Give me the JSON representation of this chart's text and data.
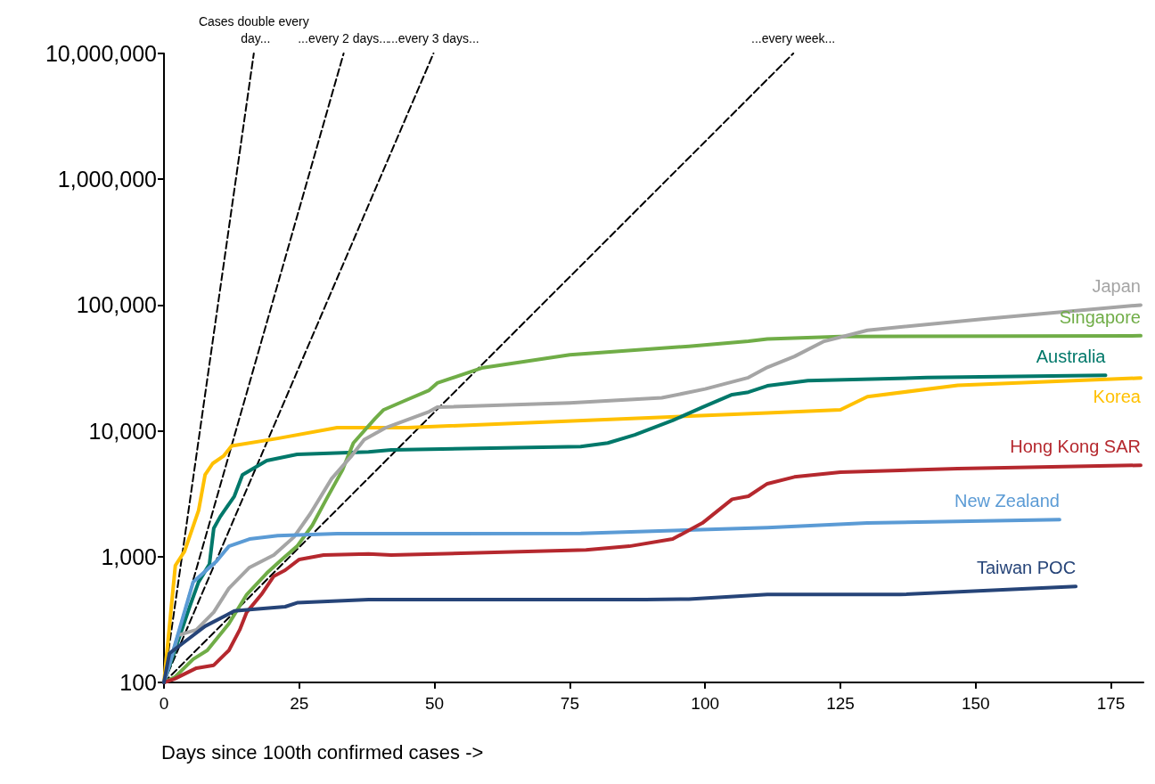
{
  "chart_data": {
    "type": "line",
    "xlabel": "Days since 100th confirmed cases ->",
    "log": "y",
    "grid": false,
    "legend": false,
    "marker": "none",
    "xlim": [
      0,
      181
    ],
    "xticks": [
      0,
      25,
      50,
      75,
      100,
      125,
      150,
      175
    ],
    "ylim": [
      100,
      10000000
    ],
    "yticks": [
      {
        "value": 100,
        "label": "100"
      },
      {
        "value": 1000,
        "label": "1,000"
      },
      {
        "value": 10000,
        "label": "10,000"
      },
      {
        "value": 100000,
        "label": "100,000"
      },
      {
        "value": 1000000,
        "label": "1,000,000"
      },
      {
        "value": 10000000,
        "label": "10,000,000"
      }
    ],
    "series": [
      {
        "name": "Cases double every day...",
        "color": "#000000",
        "line_style": "dashed",
        "x": [
          0,
          16.6
        ],
        "values": [
          100,
          10000000
        ]
      },
      {
        "name": "...every 2 days...",
        "color": "#000000",
        "line_style": "dashed",
        "x": [
          0,
          33.2
        ],
        "values": [
          100,
          10000000
        ]
      },
      {
        "name": "...every 3 days...",
        "color": "#000000",
        "line_style": "dashed",
        "x": [
          0,
          49.8
        ],
        "values": [
          100,
          10000000
        ]
      },
      {
        "name": "...every week...",
        "color": "#000000",
        "line_style": "dashed",
        "x": [
          0,
          116.3
        ],
        "values": [
          100,
          10000000
        ]
      },
      {
        "name": "Korea",
        "color": "#ffc000",
        "line_style": "solid",
        "x": [
          0,
          2.1,
          3.8,
          6.4,
          7.6,
          9,
          11,
          12.5,
          21,
          32,
          45,
          111.5,
          125,
          130,
          146.7,
          180.5
        ],
        "values": [
          100,
          850,
          1100,
          2330,
          4470,
          5500,
          6300,
          7600,
          8700,
          10600,
          10600,
          13900,
          14700,
          18700,
          23000,
          26300
        ]
      },
      {
        "name": "Australia",
        "color": "#00786a",
        "line_style": "solid",
        "x": [
          0,
          4.8,
          6.4,
          8.4,
          9.2,
          10.4,
          13,
          14.5,
          19,
          24.6,
          37.8,
          42,
          77,
          82,
          87,
          94,
          99.5,
          105,
          108,
          111.5,
          119,
          141,
          174
        ],
        "values": [
          100,
          405,
          630,
          870,
          1680,
          2080,
          3020,
          4470,
          5800,
          6500,
          6800,
          7060,
          7500,
          8000,
          9300,
          12100,
          15400,
          19400,
          20300,
          22800,
          25100,
          26500,
          27600
        ]
      },
      {
        "name": "Singapore",
        "color": "#70ad47",
        "line_style": "solid",
        "x": [
          0,
          2,
          5.4,
          8,
          12,
          15.3,
          19,
          22,
          24.6,
          27.4,
          30,
          33,
          35,
          39,
          40.6,
          44.4,
          49,
          50.5,
          58.7,
          75,
          97,
          108,
          111.5,
          125,
          180.5
        ],
        "values": [
          100,
          110,
          153,
          180,
          293,
          500,
          740,
          970,
          1210,
          1770,
          2860,
          4900,
          8000,
          12500,
          14700,
          17300,
          21000,
          24000,
          31600,
          40200,
          47000,
          51500,
          53800,
          56300,
          57000
        ]
      },
      {
        "name": "Japan",
        "color": "#a5a5a5",
        "line_style": "solid",
        "x": [
          0,
          2.6,
          6,
          9.2,
          12,
          15.8,
          20.3,
          24,
          27,
          31,
          34.5,
          37,
          41,
          49,
          50.5,
          75,
          92,
          100,
          108,
          111.5,
          116.5,
          122,
          130,
          152,
          180.5
        ],
        "values": [
          100,
          237,
          262,
          362,
          560,
          820,
          1030,
          1430,
          2180,
          4180,
          6200,
          8500,
          10600,
          14200,
          15400,
          16700,
          18300,
          21500,
          26500,
          32000,
          39000,
          51500,
          63000,
          78000,
          100000
        ]
      },
      {
        "name": "New Zealand",
        "color": "#5b9bd5",
        "line_style": "solid",
        "x": [
          0,
          5.4,
          9.7,
          12,
          15.8,
          21,
          32,
          77,
          111.5,
          130,
          165.5
        ],
        "values": [
          100,
          630,
          920,
          1210,
          1380,
          1470,
          1520,
          1530,
          1700,
          1850,
          1970
        ]
      },
      {
        "name": "Hong Kong SAR",
        "color": "#b5282e",
        "line_style": "solid",
        "x": [
          0,
          2,
          6,
          9.2,
          12,
          14,
          15.3,
          18,
          20.3,
          22.4,
          25,
          29.5,
          37.8,
          42,
          78,
          86,
          94,
          99.5,
          105,
          108,
          111.5,
          116.5,
          125,
          146.7,
          180.5
        ],
        "values": [
          100,
          107,
          130,
          137,
          180,
          262,
          362,
          500,
          700,
          780,
          950,
          1030,
          1050,
          1030,
          1130,
          1210,
          1380,
          1850,
          2860,
          3020,
          3800,
          4300,
          4700,
          5000,
          5330
        ]
      },
      {
        "name": "Taiwan POC",
        "color": "#264478",
        "line_style": "solid",
        "x": [
          0,
          1,
          3.8,
          7.6,
          13,
          15.8,
          22.4,
          24.6,
          37.8,
          70,
          89,
          97,
          111.5,
          136,
          168.5
        ],
        "values": [
          100,
          170,
          210,
          280,
          370,
          380,
          400,
          430,
          455,
          455,
          455,
          460,
          500,
          500,
          580
        ]
      }
    ]
  }
}
